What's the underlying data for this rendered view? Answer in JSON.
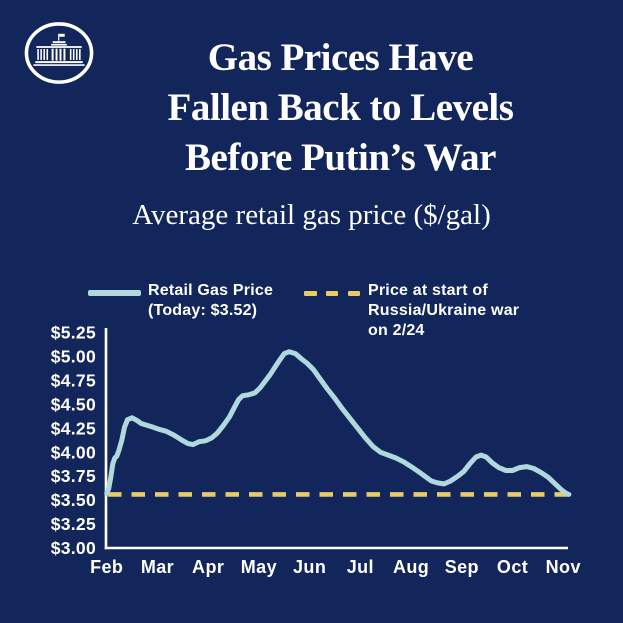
{
  "page": {
    "background_color": "#13265B",
    "text_color": "#FFFFFF"
  },
  "brand": {
    "logo": "white-house-logo"
  },
  "header": {
    "title_lines": [
      "Gas Prices Have",
      "Fallen Back to Levels",
      "Before Putin’s War"
    ],
    "subtitle": "Average retail gas price ($/gal)"
  },
  "legend": {
    "items": [
      {
        "swatch": "solid-line",
        "color": "#B0D8DD",
        "lines": [
          "Retail Gas Price",
          "(Today: $3.52)"
        ]
      },
      {
        "swatch": "dashed-line",
        "color": "#EACA62",
        "lines": [
          "Price at start of",
          "Russia/Ukraine war",
          "on 2/24"
        ]
      }
    ]
  },
  "chart_data": {
    "type": "line",
    "title": "Average retail gas price ($/gal)",
    "grid": false,
    "legend_position": "top",
    "x": {
      "categories": [
        "Feb",
        "Mar",
        "Apr",
        "May",
        "Jun",
        "Jul",
        "Aug",
        "Sep",
        "Oct",
        "Nov"
      ],
      "unit": "month (2022)"
    },
    "y": {
      "min": 3.0,
      "max": 5.25,
      "step": 0.25,
      "unit": "$/gal",
      "tick_labels": [
        "$5.25",
        "$5.00",
        "$4.75",
        "$4.50",
        "$4.25",
        "$4.00",
        "$3.75",
        "$3.50",
        "$3.25",
        "$3.00"
      ]
    },
    "series": [
      {
        "name": "Retail Gas Price (Today: $3.52)",
        "type": "line",
        "color": "#B0D8DD",
        "x_unit": "months after Feb tick (0=Feb, 9=Nov)",
        "today_value": 3.52,
        "points": [
          [
            0.0,
            3.57
          ],
          [
            0.04,
            3.62
          ],
          [
            0.08,
            3.74
          ],
          [
            0.12,
            3.88
          ],
          [
            0.16,
            3.94
          ],
          [
            0.2,
            3.96
          ],
          [
            0.24,
            4.02
          ],
          [
            0.3,
            4.13
          ],
          [
            0.35,
            4.26
          ],
          [
            0.41,
            4.34
          ],
          [
            0.5,
            4.36
          ],
          [
            0.6,
            4.33
          ],
          [
            0.68,
            4.3
          ],
          [
            0.8,
            4.28
          ],
          [
            0.92,
            4.26
          ],
          [
            1.03,
            4.24
          ],
          [
            1.17,
            4.22
          ],
          [
            1.32,
            4.18
          ],
          [
            1.47,
            4.13
          ],
          [
            1.6,
            4.09
          ],
          [
            1.7,
            4.08
          ],
          [
            1.82,
            4.11
          ],
          [
            1.95,
            4.12
          ],
          [
            2.07,
            4.15
          ],
          [
            2.18,
            4.2
          ],
          [
            2.3,
            4.28
          ],
          [
            2.42,
            4.37
          ],
          [
            2.52,
            4.47
          ],
          [
            2.6,
            4.55
          ],
          [
            2.68,
            4.59
          ],
          [
            2.8,
            4.6
          ],
          [
            2.92,
            4.62
          ],
          [
            3.02,
            4.67
          ],
          [
            3.12,
            4.74
          ],
          [
            3.22,
            4.81
          ],
          [
            3.32,
            4.89
          ],
          [
            3.42,
            4.97
          ],
          [
            3.5,
            5.03
          ],
          [
            3.6,
            5.05
          ],
          [
            3.72,
            5.03
          ],
          [
            3.85,
            4.97
          ],
          [
            3.95,
            4.93
          ],
          [
            4.08,
            4.86
          ],
          [
            4.2,
            4.77
          ],
          [
            4.35,
            4.66
          ],
          [
            4.5,
            4.56
          ],
          [
            4.65,
            4.45
          ],
          [
            4.8,
            4.35
          ],
          [
            4.95,
            4.25
          ],
          [
            5.1,
            4.15
          ],
          [
            5.25,
            4.06
          ],
          [
            5.4,
            4.0
          ],
          [
            5.55,
            3.97
          ],
          [
            5.7,
            3.94
          ],
          [
            5.85,
            3.9
          ],
          [
            6.0,
            3.85
          ],
          [
            6.14,
            3.8
          ],
          [
            6.27,
            3.75
          ],
          [
            6.4,
            3.7
          ],
          [
            6.52,
            3.68
          ],
          [
            6.65,
            3.67
          ],
          [
            6.78,
            3.7
          ],
          [
            6.92,
            3.75
          ],
          [
            7.04,
            3.8
          ],
          [
            7.16,
            3.88
          ],
          [
            7.28,
            3.95
          ],
          [
            7.38,
            3.97
          ],
          [
            7.48,
            3.95
          ],
          [
            7.6,
            3.89
          ],
          [
            7.73,
            3.84
          ],
          [
            7.87,
            3.81
          ],
          [
            8.0,
            3.81
          ],
          [
            8.14,
            3.84
          ],
          [
            8.28,
            3.85
          ],
          [
            8.42,
            3.83
          ],
          [
            8.56,
            3.79
          ],
          [
            8.7,
            3.74
          ],
          [
            8.84,
            3.67
          ],
          [
            8.96,
            3.61
          ],
          [
            9.06,
            3.57
          ],
          [
            9.11,
            3.56
          ]
        ]
      },
      {
        "name": "Price at start of Russia/Ukraine war on 2/24",
        "type": "reference_line",
        "style": "dashed",
        "color": "#EACA62",
        "value": 3.56
      }
    ]
  }
}
